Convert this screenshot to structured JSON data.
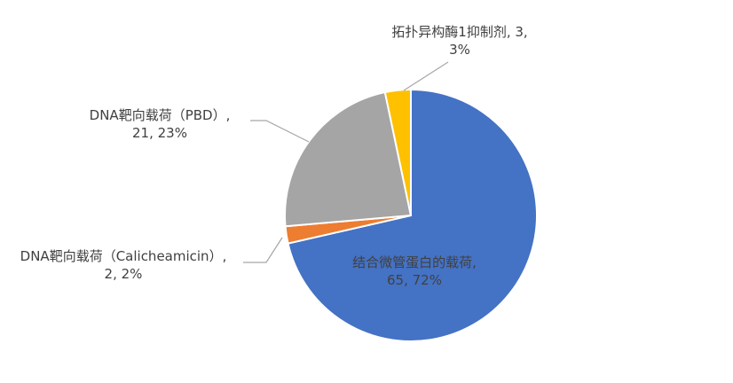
{
  "chart_data": {
    "type": "pie",
    "title": "",
    "categories": [
      "结合微管蛋白的载荷",
      "DNA靶向载荷（Calicheamicin）",
      "DNA靶向载荷（PBD）",
      "拓扑异构酶1抑制剂"
    ],
    "values": [
      65,
      2,
      21,
      3
    ],
    "percents": [
      "72%",
      "2%",
      "23%",
      "3%"
    ],
    "colors": [
      "#4472C4",
      "#ED7D31",
      "#A5A5A5",
      "#FFC000"
    ],
    "legend": "none",
    "data_labels": [
      {
        "line1": "结合微管蛋白的载荷,",
        "line2": "65, 72%"
      },
      {
        "line1": "DNA靶向载荷（Calicheamicin）,",
        "line2": "2, 2%"
      },
      {
        "line1": "DNA靶向载荷（PBD）,",
        "line2": "21, 23%"
      },
      {
        "line1": "拓扑异构酶1抑制剂, 3,",
        "line2": "3%"
      }
    ]
  }
}
